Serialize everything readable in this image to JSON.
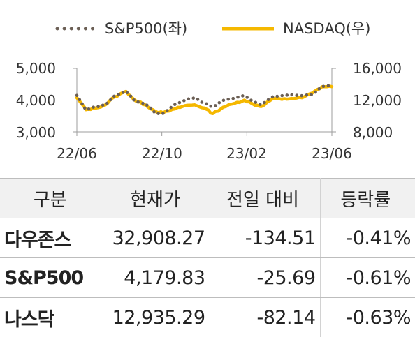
{
  "chart_data": {
    "type": "line",
    "legend": [
      "S&P500(좌)",
      "NASDAQ(우)"
    ],
    "legend_position": "top",
    "x_ticks": [
      "22/06",
      "22/10",
      "23/02",
      "23/06"
    ],
    "y_left_ticks": [
      "3,000",
      "4,000",
      "5,000"
    ],
    "y_right_ticks": [
      "8,000",
      "12,000",
      "16,000"
    ],
    "y_left_range": [
      3000,
      5000
    ],
    "y_right_range": [
      8000,
      16000
    ],
    "x_range": [
      "2022-06-01",
      "2023-06-30"
    ],
    "grid": false,
    "colors": {
      "sp500": "#6b5f55",
      "nasdaq": "#f5b800"
    },
    "series": [
      {
        "name": "S&P500(좌)",
        "axis": "left",
        "style": "dotted",
        "x": [
          "2022-06-01",
          "2022-06-15",
          "2022-06-30",
          "2022-07-15",
          "2022-07-29",
          "2022-08-16",
          "2022-08-31",
          "2022-09-15",
          "2022-09-30",
          "2022-10-12",
          "2022-10-31",
          "2022-11-15",
          "2022-11-30",
          "2022-12-15",
          "2022-12-28",
          "2023-01-13",
          "2023-01-31",
          "2023-02-15",
          "2023-02-28",
          "2023-03-13",
          "2023-03-31",
          "2023-04-14",
          "2023-04-28",
          "2023-05-15",
          "2023-05-31",
          "2023-06-15",
          "2023-06-30"
        ],
        "values": [
          4150,
          3700,
          3800,
          3850,
          4130,
          4280,
          3950,
          3900,
          3590,
          3580,
          3870,
          4000,
          4080,
          3900,
          3790,
          3990,
          4070,
          4140,
          3970,
          3860,
          4110,
          4140,
          4170,
          4140,
          4180,
          4420,
          4450
        ]
      },
      {
        "name": "NASDAQ(우)",
        "axis": "right",
        "style": "solid",
        "x": [
          "2022-06-01",
          "2022-06-15",
          "2022-06-30",
          "2022-07-15",
          "2022-07-29",
          "2022-08-16",
          "2022-08-31",
          "2022-09-15",
          "2022-09-30",
          "2022-10-12",
          "2022-10-31",
          "2022-11-15",
          "2022-11-30",
          "2022-12-15",
          "2022-12-28",
          "2023-01-13",
          "2023-01-31",
          "2023-02-15",
          "2023-02-28",
          "2023-03-13",
          "2023-03-31",
          "2023-04-14",
          "2023-04-28",
          "2023-05-15",
          "2023-05-31",
          "2023-06-15",
          "2023-06-30"
        ],
        "values": [
          12300,
          10800,
          11000,
          11400,
          12400,
          13100,
          11900,
          11400,
          10600,
          10400,
          10900,
          11300,
          11400,
          11000,
          10300,
          11100,
          11600,
          12000,
          11500,
          11200,
          12200,
          12100,
          12200,
          12300,
          12900,
          13700,
          13700
        ]
      }
    ]
  },
  "table": {
    "headers": [
      "구분",
      "현재가",
      "전일 대비",
      "등락률"
    ],
    "rows": [
      [
        "다우존스",
        "32,908.27",
        "-134.51",
        "-0.41%"
      ],
      [
        "S&P500",
        "4,179.83",
        "-25.69",
        "-0.61%"
      ],
      [
        "나스닥",
        "12,935.29",
        "-82.14",
        "-0.63%"
      ]
    ]
  }
}
